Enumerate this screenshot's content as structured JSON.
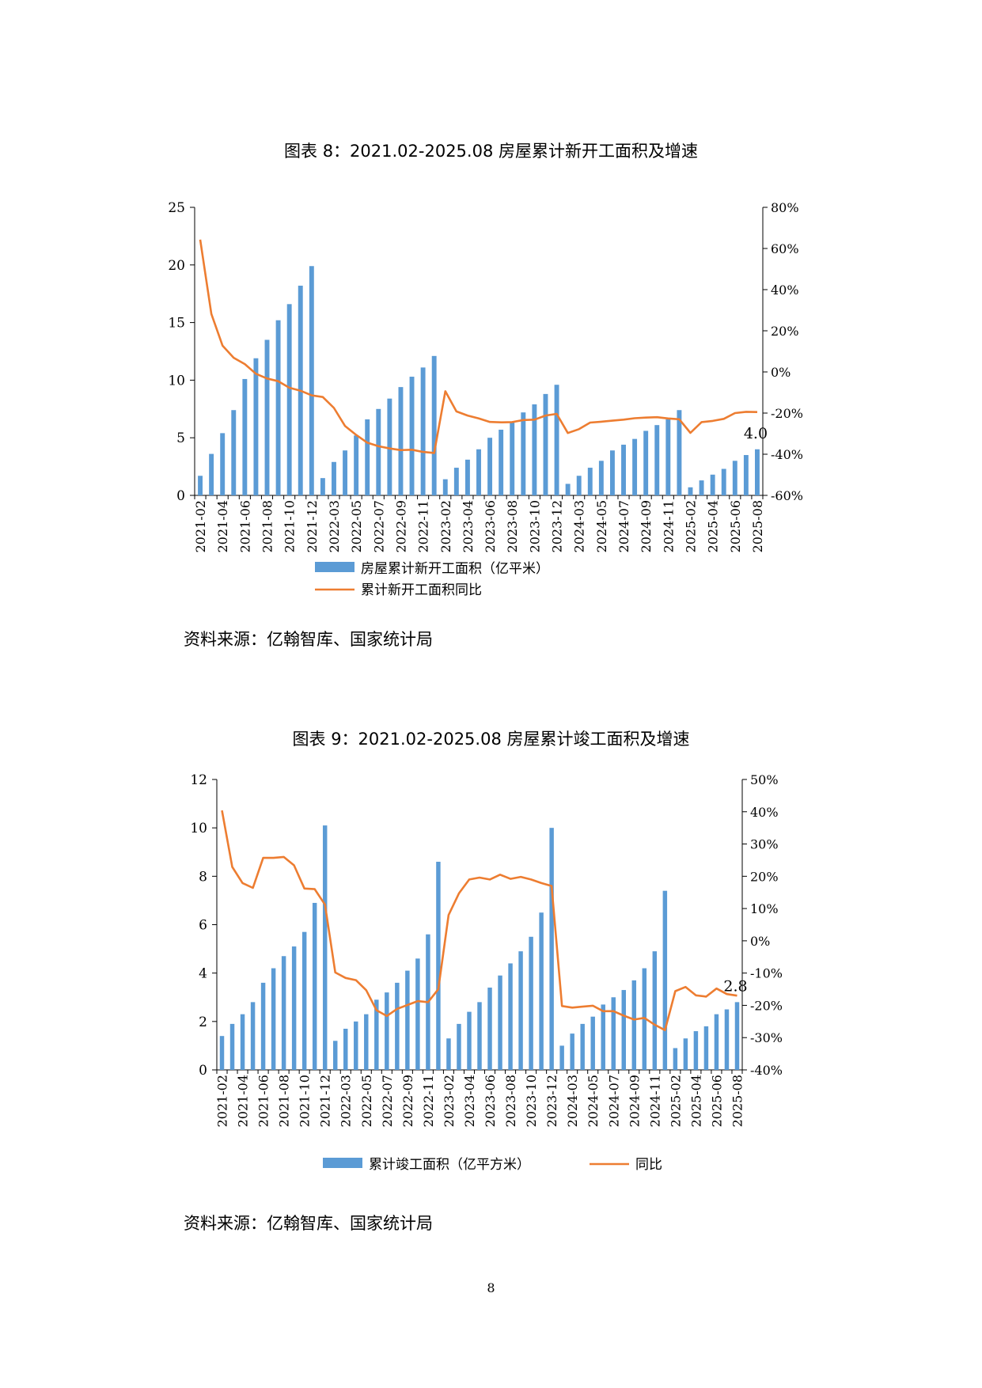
{
  "page_number": "8",
  "colors": {
    "bar": "#5B9BD5",
    "line": "#ED7D31",
    "axis": "#000000"
  },
  "chart_data": [
    {
      "type": "bar+line",
      "title": "图表 8：2021.02-2025.08 房屋累计新开工面积及增速",
      "source": "资料来源：亿翰智库、国家统计局",
      "x": [
        "2021-02",
        "2021-03",
        "2021-04",
        "2021-05",
        "2021-06",
        "2021-07",
        "2021-08",
        "2021-09",
        "2021-10",
        "2021-11",
        "2021-12",
        "2022-02",
        "2022-03",
        "2022-04",
        "2022-05",
        "2022-06",
        "2022-07",
        "2022-08",
        "2022-09",
        "2022-10",
        "2022-11",
        "2022-12",
        "2023-02",
        "2023-03",
        "2023-04",
        "2023-05",
        "2023-06",
        "2023-07",
        "2023-08",
        "2023-09",
        "2023-10",
        "2023-11",
        "2023-12",
        "2024-02",
        "2024-03",
        "2024-04",
        "2024-05",
        "2024-06",
        "2024-07",
        "2024-08",
        "2024-09",
        "2024-10",
        "2024-11",
        "2024-12",
        "2025-02",
        "2025-03",
        "2025-04",
        "2025-05",
        "2025-06",
        "2025-07",
        "2025-08"
      ],
      "x_tick_labels": [
        "2021-02",
        "2021-04",
        "2021-06",
        "2021-08",
        "2021-10",
        "2021-12",
        "2022-03",
        "2022-05",
        "2022-07",
        "2022-09",
        "2022-11",
        "2023-02",
        "2023-04",
        "2023-06",
        "2023-08",
        "2023-10",
        "2023-12",
        "2024-03",
        "2024-05",
        "2024-07",
        "2024-09",
        "2024-11",
        "2025-02",
        "2025-04",
        "2025-06",
        "2025-08"
      ],
      "y_left": {
        "ticks": [
          "0",
          "5",
          "10",
          "15",
          "20",
          "25"
        ],
        "lim": [
          0,
          25
        ]
      },
      "y_right": {
        "ticks": [
          "-60%",
          "-40%",
          "-20%",
          "0%",
          "20%",
          "40%",
          "60%",
          "80%"
        ],
        "lim": [
          -60,
          80
        ]
      },
      "series": [
        {
          "name": "房屋累计新开工面积（亿平米）",
          "kind": "bar",
          "axis": "left",
          "values": [
            1.7,
            3.6,
            5.4,
            7.4,
            10.1,
            11.9,
            13.5,
            15.2,
            16.6,
            18.2,
            19.9,
            1.5,
            2.9,
            3.9,
            5.2,
            6.6,
            7.5,
            8.4,
            9.4,
            10.3,
            11.1,
            12.1,
            1.4,
            2.4,
            3.1,
            4.0,
            5.0,
            5.7,
            6.4,
            7.2,
            7.9,
            8.8,
            9.6,
            1.0,
            1.7,
            2.4,
            3.0,
            3.9,
            4.4,
            4.9,
            5.6,
            6.1,
            6.6,
            7.4,
            0.7,
            1.3,
            1.8,
            2.3,
            3.0,
            3.5,
            4.0
          ]
        },
        {
          "name": "累计新开工面积同比",
          "kind": "line",
          "axis": "right",
          "values": [
            64.3,
            28.2,
            12.8,
            6.9,
            3.8,
            -0.9,
            -3.2,
            -4.5,
            -7.7,
            -9.1,
            -11.4,
            -12.2,
            -17.5,
            -26.3,
            -30.6,
            -34.4,
            -36.1,
            -37.2,
            -38.0,
            -37.8,
            -38.9,
            -39.4,
            -9.4,
            -19.2,
            -21.2,
            -22.6,
            -24.3,
            -24.5,
            -24.4,
            -23.4,
            -23.2,
            -21.2,
            -20.4,
            -29.7,
            -27.8,
            -24.6,
            -24.2,
            -23.7,
            -23.2,
            -22.5,
            -22.2,
            -22.0,
            -22.6,
            -23.0,
            -29.6,
            -24.4,
            -23.8,
            -22.8,
            -20.0,
            -19.4,
            -19.5
          ]
        }
      ],
      "annotation": {
        "text": "4.0"
      }
    },
    {
      "type": "bar+line",
      "title": "图表 9：2021.02-2025.08 房屋累计竣工面积及增速",
      "source": "资料来源：亿翰智库、国家统计局",
      "x": [
        "2021-02",
        "2021-03",
        "2021-04",
        "2021-05",
        "2021-06",
        "2021-07",
        "2021-08",
        "2021-09",
        "2021-10",
        "2021-11",
        "2021-12",
        "2022-02",
        "2022-03",
        "2022-04",
        "2022-05",
        "2022-06",
        "2022-07",
        "2022-08",
        "2022-09",
        "2022-10",
        "2022-11",
        "2022-12",
        "2023-02",
        "2023-03",
        "2023-04",
        "2023-05",
        "2023-06",
        "2023-07",
        "2023-08",
        "2023-09",
        "2023-10",
        "2023-11",
        "2023-12",
        "2024-02",
        "2024-03",
        "2024-04",
        "2024-05",
        "2024-06",
        "2024-07",
        "2024-08",
        "2024-09",
        "2024-10",
        "2024-11",
        "2024-12",
        "2025-02",
        "2025-03",
        "2025-04",
        "2025-05",
        "2025-06",
        "2025-07",
        "2025-08"
      ],
      "x_tick_labels": [
        "2021-02",
        "2021-04",
        "2021-06",
        "2021-08",
        "2021-10",
        "2021-12",
        "2022-03",
        "2022-05",
        "2022-07",
        "2022-09",
        "2022-11",
        "2023-02",
        "2023-04",
        "2023-06",
        "2023-08",
        "2023-10",
        "2023-12",
        "2024-03",
        "2024-05",
        "2024-07",
        "2024-09",
        "2024-11",
        "2025-02",
        "2025-04",
        "2025-06",
        "2025-08"
      ],
      "y_left": {
        "ticks": [
          "0",
          "2",
          "4",
          "6",
          "8",
          "10",
          "12"
        ],
        "lim": [
          0,
          12
        ]
      },
      "y_right": {
        "ticks": [
          "-40%",
          "-30%",
          "-20%",
          "-10%",
          "0%",
          "10%",
          "20%",
          "30%",
          "40%",
          "50%"
        ],
        "lim": [
          -40,
          50
        ]
      },
      "series": [
        {
          "name": "累计竣工面积（亿平方米）",
          "kind": "bar",
          "axis": "left",
          "values": [
            1.4,
            1.9,
            2.3,
            2.8,
            3.6,
            4.2,
            4.7,
            5.1,
            5.7,
            6.9,
            10.1,
            1.2,
            1.7,
            2.0,
            2.3,
            2.9,
            3.2,
            3.6,
            4.1,
            4.6,
            5.6,
            8.6,
            1.3,
            1.9,
            2.4,
            2.8,
            3.4,
            3.9,
            4.4,
            4.9,
            5.5,
            6.5,
            10.0,
            1.0,
            1.5,
            1.9,
            2.2,
            2.7,
            3.0,
            3.3,
            3.7,
            4.2,
            4.9,
            7.4,
            0.9,
            1.3,
            1.6,
            1.8,
            2.3,
            2.5,
            2.8
          ]
        },
        {
          "name": "同比",
          "kind": "line",
          "axis": "right",
          "values": [
            40.4,
            22.9,
            17.9,
            16.4,
            25.7,
            25.7,
            26.0,
            23.4,
            16.2,
            16.0,
            11.2,
            -9.8,
            -11.5,
            -12.2,
            -15.3,
            -21.5,
            -23.3,
            -21.1,
            -19.9,
            -18.7,
            -19.0,
            -15.0,
            8.0,
            14.7,
            19.0,
            19.6,
            19.0,
            20.5,
            19.2,
            19.8,
            19.0,
            17.9,
            17.0,
            -20.2,
            -20.7,
            -20.4,
            -20.1,
            -21.8,
            -21.8,
            -23.2,
            -24.4,
            -23.9,
            -26.0,
            -27.7,
            -15.6,
            -14.3,
            -16.9,
            -17.3,
            -14.8,
            -16.5,
            -17.0
          ]
        }
      ],
      "annotation": {
        "text": "2.8"
      }
    }
  ]
}
